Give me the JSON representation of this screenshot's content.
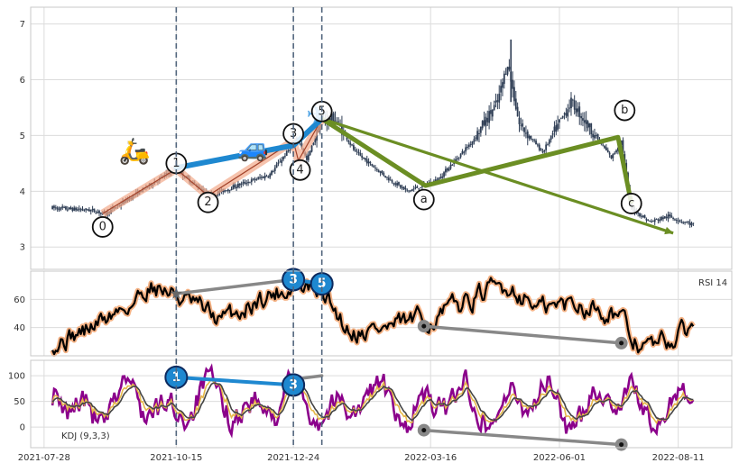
{
  "chart_data": [
    {
      "type": "candlestick",
      "panel": "price",
      "ylim": [
        2.6,
        7.3
      ],
      "yticks": [
        "3",
        "4",
        "5",
        "6",
        "7"
      ],
      "x_dates": [
        "2021-07-28",
        "2021-10-15",
        "2021-12-24",
        "2022-03-16",
        "2022-06-01",
        "2022-08-11"
      ],
      "price_path": [
        {
          "d": "2021-08-02",
          "v": 3.7
        },
        {
          "d": "2021-08-25",
          "v": 3.66
        },
        {
          "d": "2021-09-03",
          "v": 3.6
        },
        {
          "d": "2021-10-14",
          "v": 4.4
        },
        {
          "d": "2021-11-04",
          "v": 3.92
        },
        {
          "d": "2021-11-20",
          "v": 4.1
        },
        {
          "d": "2021-12-10",
          "v": 4.3
        },
        {
          "d": "2021-12-24",
          "v": 4.85
        },
        {
          "d": "2021-12-27",
          "v": 4.95
        },
        {
          "d": "2022-01-01",
          "v": 4.55
        },
        {
          "d": "2022-01-10",
          "v": 5.3
        },
        {
          "d": "2022-01-18",
          "v": 5.3
        },
        {
          "d": "2022-01-30",
          "v": 4.7
        },
        {
          "d": "2022-02-20",
          "v": 4.2
        },
        {
          "d": "2022-03-02",
          "v": 4.0
        },
        {
          "d": "2022-03-20",
          "v": 4.2
        },
        {
          "d": "2022-04-10",
          "v": 4.9
        },
        {
          "d": "2022-04-25",
          "v": 5.6
        },
        {
          "d": "2022-05-01",
          "v": 6.3
        },
        {
          "d": "2022-05-08",
          "v": 5.2
        },
        {
          "d": "2022-05-22",
          "v": 4.7
        },
        {
          "d": "2022-06-08",
          "v": 5.6
        },
        {
          "d": "2022-06-20",
          "v": 5.1
        },
        {
          "d": "2022-07-02",
          "v": 4.6
        },
        {
          "d": "2022-07-08",
          "v": 4.9
        },
        {
          "d": "2022-07-14",
          "v": 3.7
        },
        {
          "d": "2022-07-25",
          "v": 3.45
        },
        {
          "d": "2022-08-05",
          "v": 3.55
        },
        {
          "d": "2022-08-20",
          "v": 3.4
        }
      ],
      "wave_labels": [
        {
          "label": "0",
          "d": "2021-09-01",
          "v": 3.36
        },
        {
          "label": "1",
          "d": "2021-10-15",
          "v": 4.5
        },
        {
          "label": "2",
          "d": "2021-11-03",
          "v": 3.8
        },
        {
          "label": "3",
          "d": "2021-12-24",
          "v": 5.03
        },
        {
          "label": "4",
          "d": "2021-12-28",
          "v": 4.38
        },
        {
          "label": "5",
          "d": "2022-01-10",
          "v": 5.43
        },
        {
          "label": "a",
          "d": "2022-03-12",
          "v": 3.85
        },
        {
          "label": "b",
          "d": "2022-07-10",
          "v": 5.45
        },
        {
          "label": "c",
          "d": "2022-07-14",
          "v": 3.78
        }
      ],
      "impulse_path": [
        {
          "d": "2021-09-01",
          "v": 3.6
        },
        {
          "d": "2021-10-15",
          "v": 4.4
        },
        {
          "d": "2021-11-03",
          "v": 3.92
        },
        {
          "d": "2021-12-24",
          "v": 4.9
        },
        {
          "d": "2021-12-27",
          "v": 4.55
        },
        {
          "d": "2022-01-10",
          "v": 5.3
        }
      ],
      "blue_trend": [
        {
          "d": "2021-10-15",
          "v": 4.42
        },
        {
          "d": "2021-12-24",
          "v": 4.82
        },
        {
          "d": "2022-01-10",
          "v": 5.3
        }
      ],
      "green_lines": [
        [
          {
            "d": "2022-01-10",
            "v": 5.3
          },
          {
            "d": "2022-03-13",
            "v": 4.1
          },
          {
            "d": "2022-07-06",
            "v": 4.97
          },
          {
            "d": "2022-07-14",
            "v": 3.78
          }
        ],
        [
          {
            "d": "2022-01-10",
            "v": 5.3
          },
          {
            "d": "2022-08-08",
            "v": 3.25
          }
        ]
      ],
      "vertical_markers": [
        "2021-10-15",
        "2021-12-24",
        "2022-01-10"
      ],
      "icon_emojis": [
        {
          "name": "scooter-icon",
          "glyph": "🛵",
          "d": "2021-09-20",
          "v": 4.72
        },
        {
          "name": "car-icon",
          "glyph": "🚙",
          "d": "2021-11-30",
          "v": 4.78
        },
        {
          "name": "plane-icon",
          "glyph": "✈",
          "d": "2022-01-07",
          "v": 5.38
        }
      ]
    },
    {
      "type": "line",
      "panel": "rsi",
      "label": "RSI 14",
      "ylim": [
        20,
        80
      ],
      "yticks": [
        "40",
        "60"
      ],
      "markers": [
        {
          "label": "3",
          "d": "2021-12-24",
          "v": 74
        },
        {
          "label": "5",
          "d": "2022-01-10",
          "v": 71
        }
      ],
      "star_point": {
        "d": "2021-10-15",
        "v": 64
      },
      "gray_lines": [
        [
          {
            "d": "2021-10-15",
            "v": 64
          },
          {
            "d": "2021-12-24",
            "v": 74
          }
        ],
        [
          {
            "d": "2022-03-12",
            "v": 41
          },
          {
            "d": "2022-07-08",
            "v": 29
          }
        ]
      ]
    },
    {
      "type": "line",
      "panel": "kdj",
      "label": "KDJ (9,3,3)",
      "ylim": [
        -40,
        130
      ],
      "yticks": [
        "0",
        "50",
        "100"
      ],
      "markers": [
        {
          "label": "1",
          "d": "2021-10-15",
          "v": 97
        },
        {
          "label": "3",
          "d": "2021-12-24",
          "v": 82
        }
      ],
      "gray_lines": [
        [
          {
            "d": "2021-12-24",
            "v": 93
          },
          {
            "d": "2022-01-10",
            "v": 100
          }
        ],
        [
          {
            "d": "2022-03-12",
            "v": -6
          },
          {
            "d": "2022-07-08",
            "v": -34
          }
        ]
      ],
      "series": [
        {
          "name": "K",
          "color": "#e6b84a"
        },
        {
          "name": "D",
          "color": "#444444"
        },
        {
          "name": "J",
          "color": "#8b008b"
        }
      ]
    }
  ]
}
